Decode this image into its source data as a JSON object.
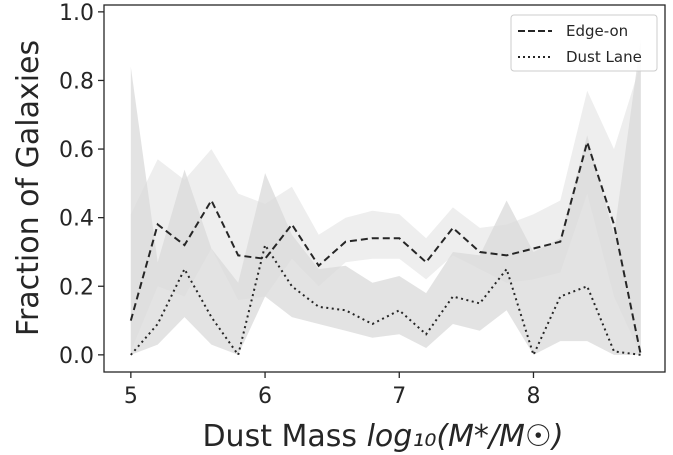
{
  "chart_data": {
    "type": "line",
    "title": "",
    "xlabel": "Dust Mass ",
    "xlabel_math": "log₁₀(M*/M☉)",
    "ylabel": "Fraction of Galaxies",
    "xlim": [
      4.8,
      8.98
    ],
    "ylim": [
      -0.05,
      1.02
    ],
    "x_ticks": [
      5,
      6,
      7,
      8
    ],
    "y_ticks": [
      0.0,
      0.2,
      0.4,
      0.6,
      0.8,
      1.0
    ],
    "x_tick_labels": [
      "5",
      "6",
      "7",
      "8"
    ],
    "y_tick_labels": [
      "0.0",
      "0.2",
      "0.4",
      "0.6",
      "0.8",
      "1.0"
    ],
    "legend_position": "top-right",
    "x": [
      5.0,
      5.2,
      5.4,
      5.6,
      5.8,
      6.0,
      6.2,
      6.4,
      6.6,
      6.8,
      7.0,
      7.2,
      7.4,
      7.6,
      7.8,
      8.0,
      8.2,
      8.4,
      8.6,
      8.8
    ],
    "series": [
      {
        "name": "Edge-on",
        "style": "dashed",
        "color": "#262626",
        "values": [
          0.1,
          0.38,
          0.32,
          0.45,
          0.29,
          0.28,
          0.38,
          0.26,
          0.33,
          0.34,
          0.34,
          0.27,
          0.37,
          0.3,
          0.29,
          0.31,
          0.33,
          0.62,
          0.38,
          0.0
        ],
        "band_lower": [
          0.01,
          0.2,
          0.17,
          0.31,
          0.16,
          0.17,
          0.28,
          0.2,
          0.27,
          0.28,
          0.28,
          0.22,
          0.29,
          0.25,
          0.21,
          0.22,
          0.24,
          0.47,
          0.17,
          0.0
        ],
        "band_upper": [
          0.41,
          0.57,
          0.51,
          0.6,
          0.47,
          0.44,
          0.49,
          0.35,
          0.4,
          0.42,
          0.41,
          0.34,
          0.43,
          0.37,
          0.38,
          0.41,
          0.45,
          0.77,
          0.6,
          0.85
        ],
        "band_color": "#eeeeee"
      },
      {
        "name": "Dust Lane",
        "style": "dotted",
        "color": "#262626",
        "values": [
          0.0,
          0.09,
          0.25,
          0.11,
          0.0,
          0.32,
          0.2,
          0.14,
          0.13,
          0.09,
          0.13,
          0.06,
          0.17,
          0.15,
          0.25,
          0.0,
          0.17,
          0.2,
          0.01,
          0.0
        ],
        "band_lower": [
          0.0,
          0.03,
          0.11,
          0.03,
          0.0,
          0.17,
          0.11,
          0.09,
          0.07,
          0.05,
          0.06,
          0.02,
          0.09,
          0.07,
          0.13,
          0.0,
          0.04,
          0.04,
          0.0,
          0.0
        ],
        "band_upper": [
          0.84,
          0.27,
          0.54,
          0.31,
          0.21,
          0.53,
          0.35,
          0.25,
          0.26,
          0.21,
          0.23,
          0.18,
          0.3,
          0.29,
          0.45,
          0.3,
          0.34,
          0.64,
          0.35,
          0.92
        ],
        "band_color": "#d9d9d9"
      }
    ]
  }
}
